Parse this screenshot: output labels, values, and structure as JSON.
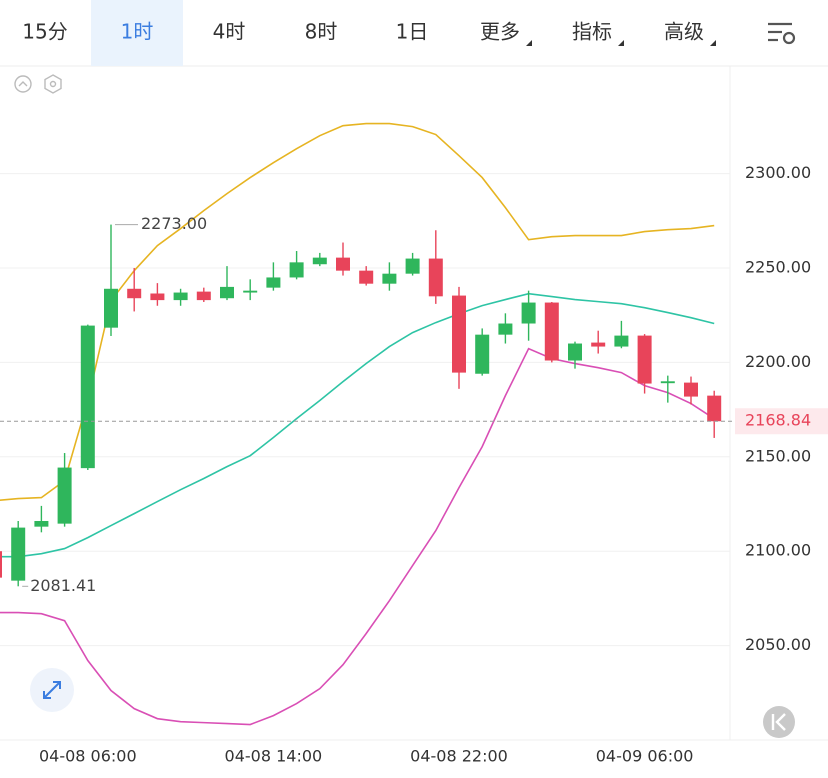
{
  "chart_data": {
    "type": "candlestick",
    "tabs": [
      {
        "label": "15分"
      },
      {
        "label": "1时",
        "active": true
      },
      {
        "label": "4时"
      },
      {
        "label": "8时"
      },
      {
        "label": "1日"
      },
      {
        "label": "更多",
        "menu": true
      },
      {
        "label": "指标",
        "menu": true
      },
      {
        "label": "高级",
        "menu": true
      }
    ],
    "categories": [
      null,
      null,
      null,
      null,
      "04-08 06:00",
      null,
      null,
      null,
      null,
      null,
      null,
      null,
      "04-08 14:00",
      null,
      null,
      null,
      null,
      null,
      null,
      null,
      "04-08 22:00",
      null,
      null,
      null,
      null,
      null,
      null,
      null,
      "04-09 06:00",
      null,
      null,
      null
    ],
    "open": [
      2100,
      2084.4,
      2113,
      2114.6,
      2144,
      2218.4,
      2239,
      2236.5,
      2233,
      2237.5,
      2234,
      2237,
      2239.6,
      2245,
      2252,
      2255.5,
      2248.6,
      2241.7,
      2247,
      2255,
      2235.4,
      2194,
      2214.7,
      2220.6,
      2231.7,
      2201,
      2210.5,
      2208.4,
      2214.2,
      2189,
      2189.3,
      2182.4
    ],
    "high": [
      2102,
      2116,
      2124,
      2152,
      2220,
      2273,
      2250,
      2242,
      2239,
      2239.6,
      2251,
      2244,
      2253,
      2259,
      2258,
      2263.5,
      2251,
      2253,
      2258,
      2270,
      2240,
      2218,
      2226,
      2238,
      2232,
      2211,
      2216.8,
      2222,
      2215,
      2193,
      2192.5,
      2185
    ],
    "low": [
      2083,
      2081.41,
      2110,
      2113,
      2143,
      2214,
      2227,
      2230,
      2230,
      2232,
      2233,
      2233,
      2238,
      2244,
      2251,
      2246,
      2240.7,
      2238,
      2246,
      2231,
      2186,
      2193,
      2210,
      2211.5,
      2200,
      2196.7,
      2204.7,
      2207.5,
      2183.5,
      2178.7,
      2177.7,
      2160
    ],
    "close": [
      2086,
      2112.5,
      2116,
      2144.3,
      2219.5,
      2239,
      2234,
      2233,
      2237,
      2233,
      2240,
      2238,
      2245,
      2253,
      2255.5,
      2248.6,
      2241.7,
      2247,
      2255,
      2235,
      2194.6,
      2214.7,
      2220.6,
      2231.7,
      2201,
      2210,
      2208.4,
      2214.2,
      2188.8,
      2190,
      2181.9,
      2168.84
    ],
    "up_color": "#2fb65c",
    "down_color": "#e8445a",
    "lines": [
      {
        "color": "#e6b422",
        "values": [
          2126.8,
          2127.9,
          2128.4,
          2137.4,
          2179.8,
          2232.7,
          2248.6,
          2261.9,
          2270.9,
          2280.4,
          2289.4,
          2297.9,
          2305.8,
          2313.2,
          2320.1,
          2325.4,
          2326.5,
          2326.5,
          2324.9,
          2320.7,
          2309.5,
          2297.9,
          2282.0,
          2265.0,
          2266.6,
          2267.2,
          2267.2,
          2267.2,
          2269.3,
          2270.3,
          2270.9,
          2272.5
        ]
      },
      {
        "color": "#2ec4a5",
        "values": [
          2097.1,
          2097.1,
          2098.7,
          2101.4,
          2107.2,
          2113.6,
          2119.9,
          2126.3,
          2132.6,
          2138.5,
          2144.8,
          2150.6,
          2160.2,
          2170.2,
          2179.8,
          2189.8,
          2199.4,
          2208.4,
          2215.8,
          2221.1,
          2225.8,
          2230.1,
          2233.3,
          2236.4,
          2234.9,
          2233.3,
          2232.2,
          2231.1,
          2229.0,
          2226.4,
          2223.7,
          2220.6
        ]
      },
      {
        "color": "#d94fb5",
        "values": [
          2067.5,
          2067.5,
          2066.9,
          2063.2,
          2042.1,
          2026.2,
          2016.6,
          2011.3,
          2009.7,
          2009.2,
          2008.7,
          2008.2,
          2012.9,
          2019.3,
          2027.2,
          2039.9,
          2056.4,
          2073.8,
          2092.4,
          2110.9,
          2133.7,
          2155.4,
          2182.4,
          2207.3,
          2202.0,
          2199.4,
          2197.2,
          2194.6,
          2187.7,
          2184.0,
          2178.2,
          2170.2
        ]
      }
    ],
    "max_label": "2273.00",
    "min_label": "2081.41",
    "last_label": "2168.84",
    "ylim": [
      2000,
      2357
    ],
    "yticks": [
      {
        "value": 2050,
        "label": "2050.00"
      },
      {
        "value": 2100,
        "label": "2100.00"
      },
      {
        "value": 2150,
        "label": "2150.00"
      },
      {
        "value": 2200,
        "label": "2200.00"
      },
      {
        "value": 2250,
        "label": "2250.00"
      },
      {
        "value": 2300,
        "label": "2300.00"
      }
    ],
    "grid": true
  }
}
